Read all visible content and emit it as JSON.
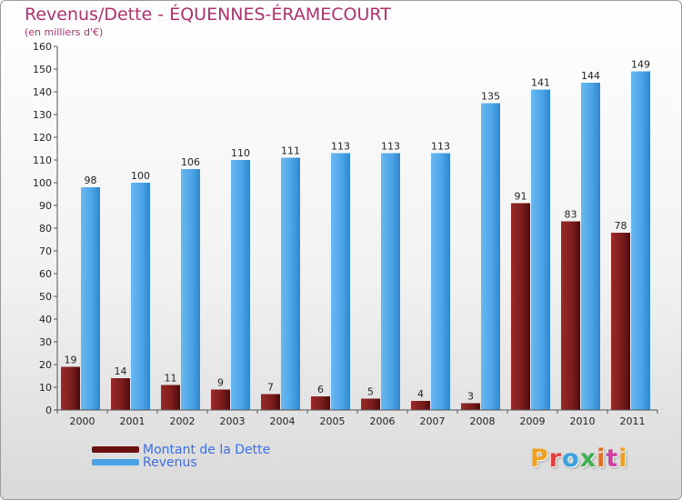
{
  "colors": {
    "title": "#b03070",
    "debt_bar": "#7a1c1c",
    "revenue_bar": "#4aa3e6",
    "legend_text": "#3a6ee8",
    "logo": [
      "#f0a020",
      "#e04040",
      "#3aa0e0",
      "#40b050",
      "#e07020",
      "#d040a0"
    ]
  },
  "chart_data": {
    "type": "bar",
    "title": "Revenus/Dette - ÉQUENNES-ÉRAMECOURT",
    "subtitle": "(en milliers d'€)",
    "categories": [
      "2000",
      "2001",
      "2002",
      "2003",
      "2004",
      "2005",
      "2006",
      "2007",
      "2008",
      "2009",
      "2010",
      "2011"
    ],
    "series": [
      {
        "name": "Montant de la Dette",
        "values": [
          19,
          14,
          11,
          9,
          7,
          6,
          5,
          4,
          3,
          91,
          83,
          78
        ]
      },
      {
        "name": "Revenus",
        "values": [
          98,
          100,
          106,
          110,
          111,
          113,
          113,
          113,
          135,
          141,
          144,
          149
        ]
      }
    ],
    "ylim": [
      0,
      160
    ],
    "yticks": [
      0,
      10,
      20,
      30,
      40,
      50,
      60,
      70,
      80,
      90,
      100,
      110,
      120,
      130,
      140,
      150,
      160
    ],
    "grid": false,
    "legend_position": "bottom-left"
  },
  "logo": {
    "text": "Proxiti",
    "letters": [
      "P",
      "r",
      "o",
      "x",
      "i",
      "t",
      "i"
    ]
  }
}
